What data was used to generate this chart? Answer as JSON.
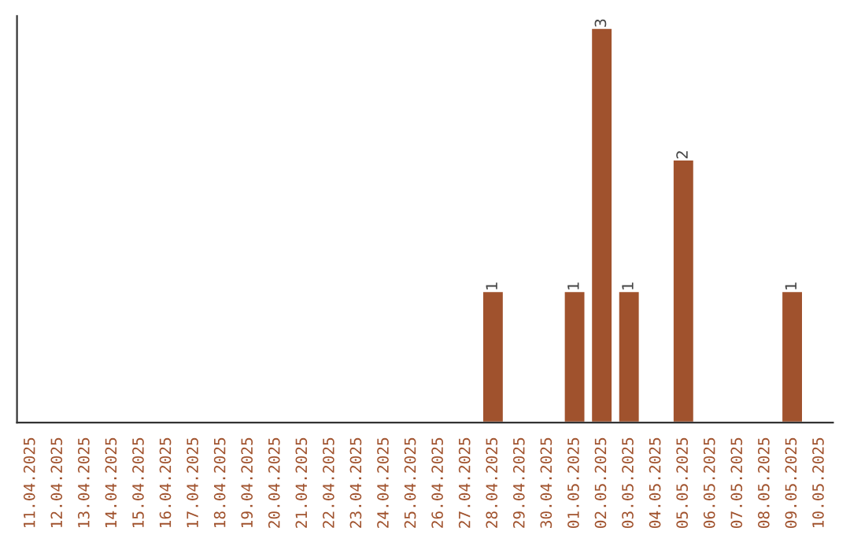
{
  "chart_data": {
    "type": "bar",
    "categories": [
      "11.04.2025",
      "12.04.2025",
      "13.04.2025",
      "14.04.2025",
      "15.04.2025",
      "16.04.2025",
      "17.04.2025",
      "18.04.2025",
      "19.04.2025",
      "20.04.2025",
      "21.04.2025",
      "22.04.2025",
      "23.04.2025",
      "24.04.2025",
      "25.04.2025",
      "26.04.2025",
      "27.04.2025",
      "28.04.2025",
      "29.04.2025",
      "30.04.2025",
      "01.05.2025",
      "02.05.2025",
      "03.05.2025",
      "04.05.2025",
      "05.05.2025",
      "06.05.2025",
      "07.05.2025",
      "08.05.2025",
      "09.05.2025",
      "10.05.2025"
    ],
    "values": [
      null,
      null,
      null,
      null,
      null,
      null,
      null,
      null,
      null,
      null,
      null,
      null,
      null,
      null,
      null,
      null,
      null,
      1,
      null,
      null,
      1,
      3,
      1,
      null,
      2,
      null,
      null,
      null,
      1,
      null
    ],
    "value_labels": [
      null,
      null,
      null,
      null,
      null,
      null,
      null,
      null,
      null,
      null,
      null,
      null,
      null,
      null,
      null,
      null,
      null,
      "1",
      null,
      null,
      "1",
      "3",
      "1",
      null,
      "2",
      null,
      null,
      null,
      "1",
      null
    ],
    "color": "#a0522d",
    "tick_labels": "x",
    "grid": false,
    "legend": false
  }
}
